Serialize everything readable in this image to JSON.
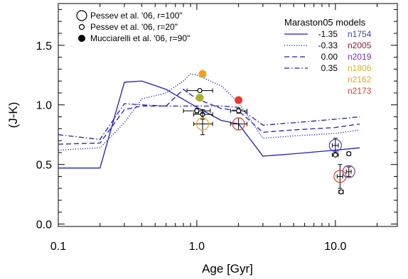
{
  "chart_data": {
    "type": "line",
    "xlabel": "Age [Gyr]",
    "ylabel": "(J-K)",
    "x_scale": "log",
    "xlim": [
      0.1,
      28
    ],
    "ylim": [
      -0.02,
      1.85
    ],
    "x_ticks": [
      {
        "value": 0.1,
        "label": "0.1"
      },
      {
        "value": 1.0,
        "label": "1.0"
      },
      {
        "value": 10.0,
        "label": "10.0"
      }
    ],
    "y_ticks": [
      {
        "value": 0.0,
        "label": "0.0"
      },
      {
        "value": 0.5,
        "label": "0.5"
      },
      {
        "value": 1.0,
        "label": "1.0"
      },
      {
        "value": 1.5,
        "label": "1.5"
      }
    ],
    "grid": false,
    "models_legend_title": "Maraston05 models",
    "model_lines": [
      {
        "name": "-1.35",
        "dash": "solid",
        "x": [
          0.1,
          0.2,
          0.3,
          0.4,
          0.6,
          1.0,
          1.5,
          2.0,
          3.0,
          5.0,
          10.0,
          15.0
        ],
        "y": [
          0.47,
          0.47,
          1.19,
          1.2,
          1.13,
          0.98,
          0.87,
          0.84,
          0.57,
          0.59,
          0.62,
          0.64
        ]
      },
      {
        "name": "-0.33",
        "dash": "dotted",
        "x": [
          0.1,
          0.2,
          0.3,
          0.4,
          0.6,
          0.8,
          0.9,
          1.0,
          1.5,
          2.0,
          3.0,
          5.0,
          10.0,
          15.0
        ],
        "y": [
          0.62,
          0.64,
          0.85,
          1.05,
          1.1,
          1.2,
          1.26,
          1.25,
          1.16,
          1.02,
          0.72,
          0.74,
          0.76,
          0.79
        ]
      },
      {
        "name": "0.00",
        "dash": "dashed",
        "x": [
          0.1,
          0.2,
          0.3,
          0.4,
          0.6,
          0.8,
          1.0,
          1.5,
          2.0,
          3.0,
          5.0,
          10.0,
          15.0
        ],
        "y": [
          0.67,
          0.68,
          0.96,
          0.99,
          0.99,
          1.13,
          1.05,
          0.97,
          0.95,
          0.77,
          0.79,
          0.81,
          0.84
        ]
      },
      {
        "name": "0.35",
        "dash": "dashdot",
        "x": [
          0.1,
          0.2,
          0.3,
          0.4,
          0.6,
          1.0,
          1.5,
          2.0,
          3.0,
          5.0,
          10.0,
          15.0
        ],
        "y": [
          0.75,
          0.71,
          1.01,
          1.0,
          0.99,
          0.99,
          0.99,
          0.98,
          0.83,
          0.85,
          0.88,
          0.9
        ]
      }
    ],
    "clusters": [
      {
        "name": "n1754",
        "color": "#3b3bd1"
      },
      {
        "name": "n2005",
        "color": "#8b1a3a"
      },
      {
        "name": "n2019",
        "color": "#7b2fb5"
      },
      {
        "name": "n1806",
        "color": "#c8b92a"
      },
      {
        "name": "n2162",
        "color": "#f0a020"
      },
      {
        "name": "n2173",
        "color": "#ec3a2a"
      }
    ],
    "symbol_legend": [
      {
        "label": "Pessev et al. '06, r=100\"",
        "symbol": "large-open-circle"
      },
      {
        "label": "Pessev et al. '06, r=20\"",
        "symbol": "small-open-circle"
      },
      {
        "label": "Mucciarelli et al. '06, r=90\"",
        "symbol": "filled-circle"
      }
    ],
    "points": [
      {
        "x": 1.1,
        "y": 1.26,
        "symbol": "filled",
        "color": "#f0a020"
      },
      {
        "x": 2.0,
        "y": 1.04,
        "symbol": "filled",
        "color": "#ec3a2a"
      },
      {
        "x": 1.05,
        "y": 1.06,
        "symbol": "filled",
        "color": "#a8b22a"
      },
      {
        "x": 1.05,
        "y": 1.12,
        "symbol": "small-open",
        "color": "#000000",
        "xerr": [
          0.85,
          1.3
        ],
        "yerr": 0.01
      },
      {
        "x": 1.0,
        "y": 0.95,
        "symbol": "small-open",
        "color": "#000000",
        "xerr": [
          0.8,
          1.25
        ],
        "yerr": 0.02
      },
      {
        "x": 1.1,
        "y": 0.92,
        "symbol": "small-open",
        "color": "#000000",
        "xerr": [
          0.95,
          1.3
        ],
        "yerr": 0.04
      },
      {
        "x": 1.1,
        "y": 0.84,
        "symbol": "large-open",
        "color": "#f0a020",
        "xerr": [
          0.95,
          1.3
        ],
        "yerr": 0.09
      },
      {
        "x": 2.0,
        "y": 0.95,
        "symbol": "small-open",
        "color": "#000000",
        "xerr": [
          1.75,
          2.3
        ],
        "yerr": 0.02
      },
      {
        "x": 2.0,
        "y": 0.84,
        "symbol": "large-open",
        "color": "#ec3a2a",
        "xerr": [
          1.75,
          2.3
        ],
        "yerr": 0.05
      },
      {
        "x": 10.0,
        "y": 0.66,
        "symbol": "large-open",
        "color": "#3b3bd1",
        "xerr": [
          9.5,
          10.5
        ],
        "yerr": 0.06
      },
      {
        "x": 10.0,
        "y": 0.58,
        "symbol": "small-open",
        "color": "#000000",
        "xerr": [
          9.5,
          10.5
        ],
        "yerr": 0.01
      },
      {
        "x": 10.8,
        "y": 0.4,
        "symbol": "large-open",
        "color": "#ec3a2a",
        "xerr": [
          10.3,
          11.3
        ],
        "yerr": 0.1
      },
      {
        "x": 12.5,
        "y": 0.44,
        "symbol": "large-open",
        "color": "#7b2fb5",
        "xerr": [
          12.0,
          13.0
        ],
        "yerr": 0.04
      },
      {
        "x": 12.5,
        "y": 0.59,
        "symbol": "small-open",
        "color": "#000000",
        "xerr": [
          12.1,
          12.9
        ],
        "yerr": 0.01
      },
      {
        "x": 11.0,
        "y": 0.27,
        "symbol": "small-open",
        "color": "#000000",
        "xerr": [
          10.6,
          11.4
        ],
        "yerr": 0.01
      }
    ]
  }
}
